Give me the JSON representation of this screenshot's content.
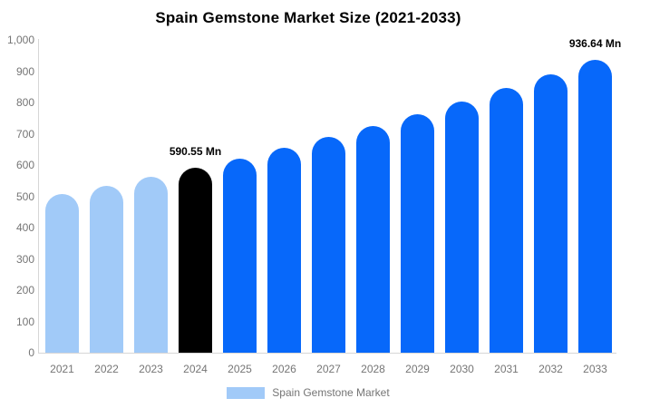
{
  "title": "Spain Gemstone Market Size (2021-2033)",
  "chart_data": {
    "type": "bar",
    "title": "Spain Gemstone Market Size (2021-2033)",
    "categories": [
      "2021",
      "2022",
      "2023",
      "2024",
      "2025",
      "2026",
      "2027",
      "2028",
      "2029",
      "2030",
      "2031",
      "2032",
      "2033"
    ],
    "values": [
      506.4,
      533.0,
      561.1,
      590.55,
      621.6,
      654.3,
      688.7,
      724.9,
      763.0,
      803.2,
      845.4,
      889.9,
      936.64
    ],
    "bar_color_keys": [
      "light",
      "light",
      "light",
      "black",
      "blue",
      "blue",
      "blue",
      "blue",
      "blue",
      "blue",
      "blue",
      "blue",
      "blue"
    ],
    "colors": {
      "light": "#A1CAF8",
      "blue": "#0768FA",
      "black": "#000000"
    },
    "annotations": [
      {
        "index": 3,
        "text": "590.55 Mn"
      },
      {
        "index": 12,
        "text": "936.64 Mn"
      }
    ],
    "xlabel": "",
    "ylabel": "",
    "ylim": [
      0,
      1000
    ],
    "y_ticks": [
      "1,000",
      "900",
      "800",
      "700",
      "600",
      "500",
      "400",
      "300",
      "200",
      "100",
      "0"
    ],
    "grid": false,
    "legend": {
      "position": "bottom",
      "items": [
        {
          "label": "Spain Gemstone Market",
          "color": "#A1CAF8"
        }
      ]
    }
  }
}
